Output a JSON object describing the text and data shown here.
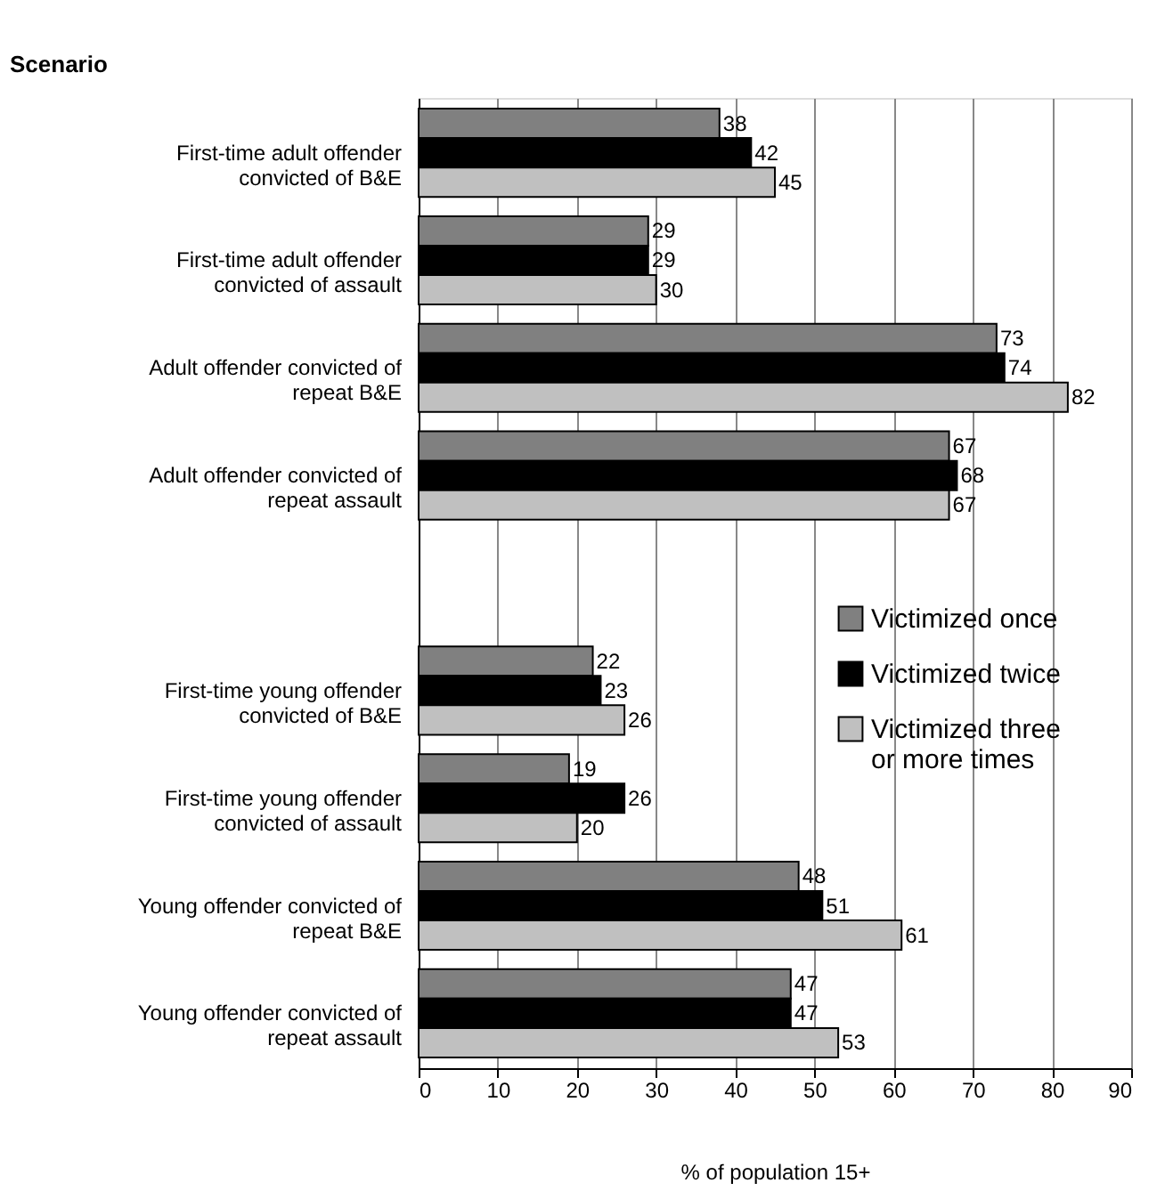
{
  "chart_data": {
    "type": "bar",
    "orientation": "horizontal",
    "ylabel": "Scenario",
    "xlabel": "% of population 15+",
    "categories": [
      "First-time adult offender\nconvicted of B&E",
      "First-time adult offender\nconvicted of assault",
      "Adult offender convicted of\nrepeat B&E",
      "Adult offender convicted of\nrepeat assault",
      null,
      "First-time young offender\nconvicted of B&E",
      "First-time young offender\nconvicted of assault",
      "Young offender convicted of\nrepeat B&E",
      "Young offender convicted of\nrepeat assault"
    ],
    "series": [
      {
        "name": "Victimized once",
        "color": "#808080",
        "values": [
          38,
          29,
          73,
          67,
          null,
          22,
          19,
          48,
          47
        ]
      },
      {
        "name": "Victimized twice",
        "color": "#000000",
        "values": [
          42,
          29,
          74,
          68,
          null,
          23,
          26,
          51,
          47
        ]
      },
      {
        "name": "Victimized three\nor more times",
        "color": "#c0c0c0",
        "values": [
          45,
          30,
          82,
          67,
          null,
          26,
          20,
          61,
          53
        ]
      }
    ],
    "xlim": [
      0,
      90
    ],
    "xticks": [
      0,
      10,
      20,
      30,
      40,
      50,
      60,
      70,
      80,
      90
    ],
    "grid": "x",
    "legend": "right",
    "data_labels": true
  }
}
